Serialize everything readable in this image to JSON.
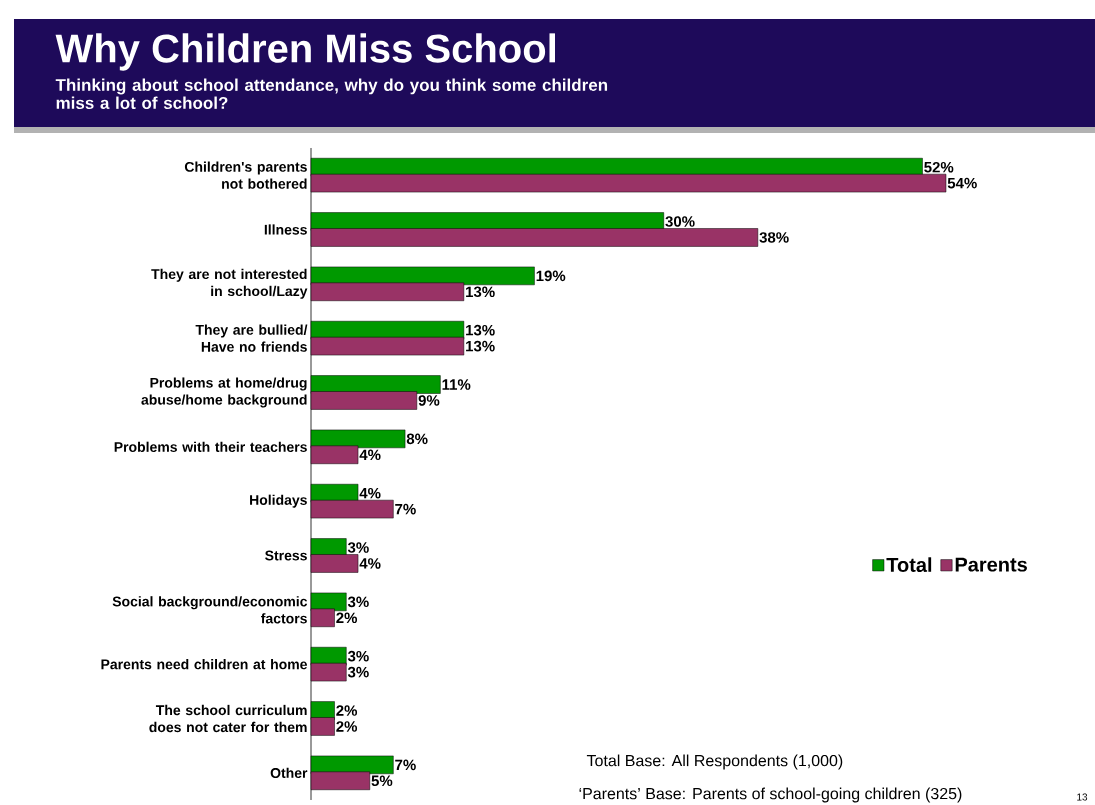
{
  "chart_data": {
    "type": "bar",
    "orientation": "horizontal",
    "title": "Why Children Miss School",
    "subtitle": "Thinking about school attendance, why do you think some children miss a lot of school?",
    "categories": [
      "Children's parents not bothered",
      "Illness",
      "They are not interested in school/Lazy",
      "They are bullied/ Have no friends",
      "Problems at home/drug abuse/home background",
      "Problems with their teachers",
      "Holidays",
      "Stress",
      "Social background/economic factors",
      "Parents need children at home",
      "The school curriculum does not cater for them",
      "Other"
    ],
    "series": [
      {
        "name": "Total",
        "color": "#009900",
        "values": [
          52,
          30,
          19,
          13,
          11,
          8,
          4,
          3,
          3,
          3,
          2,
          7
        ],
        "value_labels": [
          "52%",
          "30%",
          "19%",
          "13%",
          "11%",
          "8%",
          "4%",
          "3%",
          "3%",
          "3%",
          "2%",
          "7%"
        ]
      },
      {
        "name": "Parents",
        "color": "#993366",
        "values": [
          54,
          38,
          13,
          13,
          9,
          4,
          7,
          4,
          2,
          3,
          2,
          5
        ],
        "value_labels": [
          "54%",
          "38%",
          "13%",
          "13%",
          "9%",
          "4%",
          "7%",
          "4%",
          "2%",
          "3%",
          "2%",
          "5%"
        ]
      }
    ],
    "legend": "right",
    "annotations": [
      "Total Base: All Respondents (1,000)",
      "‘Parents’ Base: Parents of school-going children (325)",
      "13"
    ]
  }
}
